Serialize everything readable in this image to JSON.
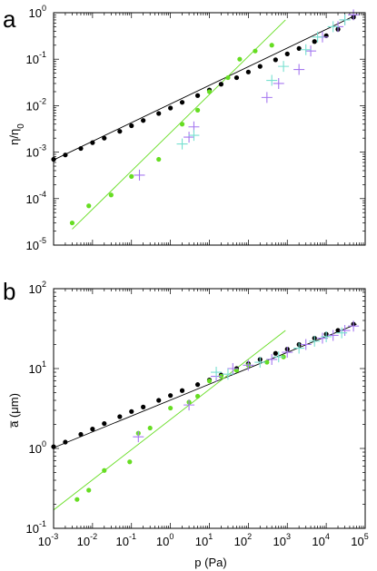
{
  "chart_data": [
    {
      "panel": "a",
      "type": "scatter",
      "ylabel_base": "η/η",
      "ylabel_sub": "0",
      "xscale": "log",
      "yscale": "log",
      "xlim": [
        0.001,
        100000
      ],
      "ylim": [
        1e-05,
        1
      ],
      "x_ticks": [
        {
          "base": "10",
          "exp": "-3"
        },
        {
          "base": "10",
          "exp": "-2"
        },
        {
          "base": "10",
          "exp": "-1"
        },
        {
          "base": "10",
          "exp": "0"
        },
        {
          "base": "10",
          "exp": "1"
        },
        {
          "base": "10",
          "exp": "2"
        },
        {
          "base": "10",
          "exp": "3"
        },
        {
          "base": "10",
          "exp": "4"
        },
        {
          "base": "10",
          "exp": "5"
        }
      ],
      "y_ticks": [
        {
          "base": "10",
          "exp": "-5"
        },
        {
          "base": "10",
          "exp": "-4"
        },
        {
          "base": "10",
          "exp": "-3"
        },
        {
          "base": "10",
          "exp": "-2"
        },
        {
          "base": "10",
          "exp": "-1"
        },
        {
          "base": "10",
          "exp": "0"
        }
      ],
      "series": [
        {
          "color": "#000000",
          "marker": "dot",
          "x": [
            0.001,
            0.002,
            0.005,
            0.01,
            0.02,
            0.05,
            0.1,
            0.2,
            0.5,
            1,
            2,
            5,
            10,
            20,
            50,
            100,
            200,
            500,
            1000,
            2000,
            5000,
            10000,
            20000,
            50000
          ],
          "y": [
            0.0007,
            0.00087,
            0.0012,
            0.0016,
            0.002,
            0.0028,
            0.0037,
            0.0048,
            0.0068,
            0.0089,
            0.0118,
            0.0165,
            0.0218,
            0.029,
            0.04,
            0.053,
            0.07,
            0.097,
            0.13,
            0.17,
            0.24,
            0.32,
            0.44,
            0.8
          ]
        },
        {
          "color": "#66dd22",
          "marker": "dot",
          "x": [
            0.003,
            0.008,
            0.03,
            0.1,
            0.5,
            2,
            5,
            10,
            30,
            60,
            150,
            400
          ],
          "y": [
            3e-05,
            7e-05,
            0.00012,
            0.0003,
            0.0007,
            0.004,
            0.008,
            0.02,
            0.04,
            0.1,
            0.15,
            0.2
          ]
        },
        {
          "color": "#a678f0",
          "marker": "plus",
          "x": [
            0.16,
            3,
            4,
            300,
            600,
            2000,
            4000,
            8000,
            20000,
            30000,
            50000
          ],
          "y": [
            0.00032,
            0.0021,
            0.0035,
            0.015,
            0.03,
            0.06,
            0.15,
            0.3,
            0.5,
            0.7,
            0.9
          ]
        },
        {
          "color": "#77e0d0",
          "marker": "plus",
          "x": [
            2,
            4,
            400,
            800,
            3000,
            6000,
            15000,
            30000
          ],
          "y": [
            0.0015,
            0.0023,
            0.035,
            0.07,
            0.16,
            0.3,
            0.5,
            0.7
          ]
        }
      ],
      "fit_lines": [
        {
          "color": "#000000",
          "x": [
            0.001,
            60000
          ],
          "y": [
            0.00068,
            0.9
          ]
        },
        {
          "color": "#66dd22",
          "x": [
            0.003,
            900
          ],
          "y": [
            2.2e-05,
            0.7
          ]
        }
      ]
    },
    {
      "panel": "b",
      "type": "scatter",
      "ylabel": "a̅ (μm)",
      "xlabel": "p (Pa)",
      "xscale": "log",
      "yscale": "log",
      "xlim": [
        0.001,
        100000
      ],
      "ylim": [
        0.1,
        100
      ],
      "x_ticks": [
        {
          "base": "10",
          "exp": "-3"
        },
        {
          "base": "10",
          "exp": "-2"
        },
        {
          "base": "10",
          "exp": "-1"
        },
        {
          "base": "10",
          "exp": "0"
        },
        {
          "base": "10",
          "exp": "1"
        },
        {
          "base": "10",
          "exp": "2"
        },
        {
          "base": "10",
          "exp": "3"
        },
        {
          "base": "10",
          "exp": "4"
        },
        {
          "base": "10",
          "exp": "5"
        }
      ],
      "y_ticks": [
        {
          "base": "10",
          "exp": "-1"
        },
        {
          "base": "10",
          "exp": "0"
        },
        {
          "base": "10",
          "exp": "1"
        },
        {
          "base": "10",
          "exp": "2"
        }
      ],
      "series": [
        {
          "color": "#000000",
          "marker": "dot",
          "x": [
            0.001,
            0.002,
            0.005,
            0.01,
            0.02,
            0.05,
            0.1,
            0.2,
            0.5,
            1,
            2,
            5,
            10,
            20,
            50,
            100,
            200,
            500,
            1000,
            2000,
            5000,
            10000,
            20000,
            50000
          ],
          "y": [
            1.05,
            1.2,
            1.5,
            1.75,
            2.05,
            2.5,
            2.9,
            3.3,
            4,
            4.6,
            5.3,
            6.3,
            7.2,
            8.3,
            10,
            11.5,
            13,
            15.5,
            17.5,
            20,
            24,
            27,
            30,
            36
          ]
        },
        {
          "color": "#66dd22",
          "marker": "dot",
          "x": [
            0.004,
            0.008,
            0.02,
            0.09,
            0.15,
            0.3,
            1,
            3,
            5,
            10,
            20,
            50,
            100,
            300,
            800
          ],
          "y": [
            0.23,
            0.3,
            0.53,
            0.68,
            1.55,
            1.8,
            3.2,
            3.8,
            4.5,
            7,
            8,
            9.5,
            11,
            12,
            14
          ]
        },
        {
          "color": "#a678f0",
          "marker": "plus",
          "x": [
            0.15,
            3,
            15,
            40,
            100,
            400,
            1000,
            3000,
            8000,
            15000,
            30000,
            50000
          ],
          "y": [
            1.4,
            3.5,
            8,
            10,
            11,
            13,
            16,
            20,
            24,
            26,
            30,
            34
          ]
        },
        {
          "color": "#77e0d0",
          "marker": "plus",
          "x": [
            15,
            30,
            200,
            600,
            2000,
            5000,
            10000,
            25000
          ],
          "y": [
            9,
            8.5,
            12,
            14,
            18,
            22,
            25,
            28
          ]
        }
      ],
      "fit_lines": [
        {
          "color": "#000000",
          "x": [
            0.001,
            60000
          ],
          "y": [
            1.02,
            36
          ]
        },
        {
          "color": "#66dd22",
          "x": [
            0.001,
            900
          ],
          "y": [
            0.17,
            30
          ]
        }
      ]
    }
  ]
}
